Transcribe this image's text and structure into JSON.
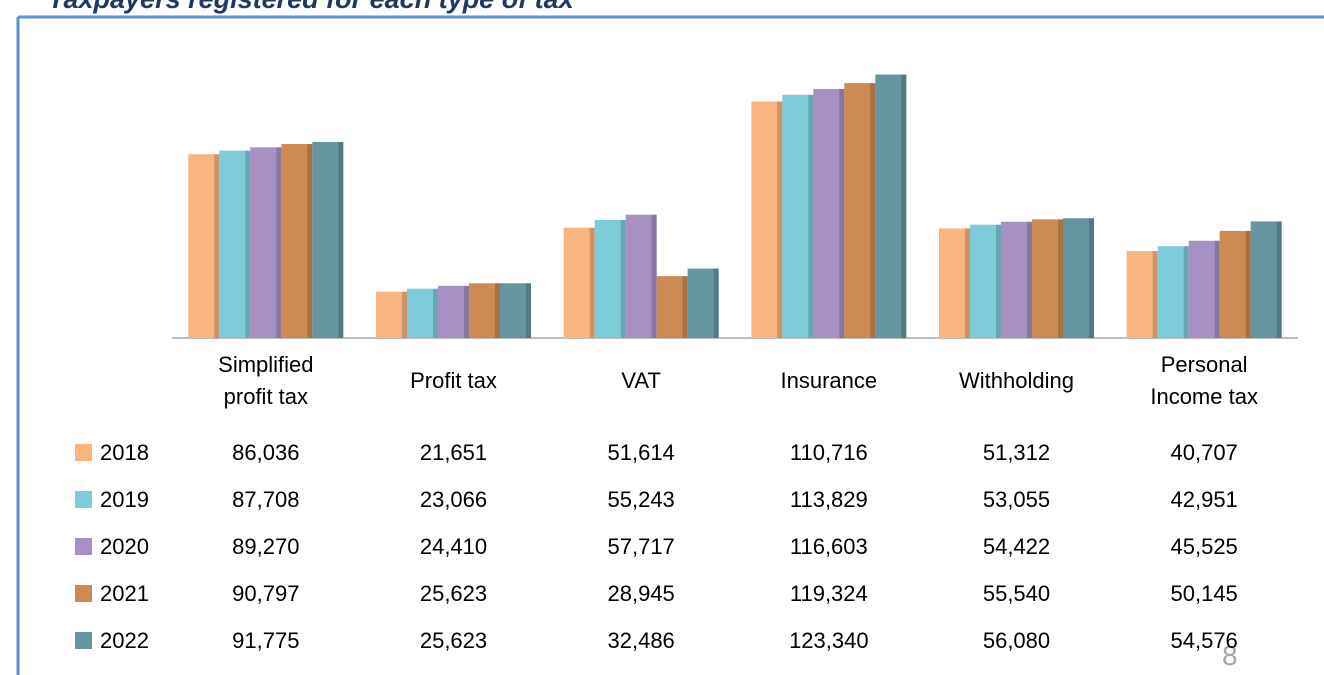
{
  "chart_data": {
    "type": "bar",
    "title": "Taxpayers registered for each type of tax",
    "annotation": "8",
    "categories": [
      "Simplified profit tax",
      "Profit tax",
      "VAT",
      "Insurance",
      "Withholding",
      "Personal Income tax"
    ],
    "ylim": [
      0,
      125000
    ],
    "legend": "table",
    "series": [
      {
        "name": "2018",
        "color": "#f9b47f",
        "values": [
          86036,
          21651,
          51614,
          110716,
          51312,
          40707
        ],
        "value_labels": [
          "86,036",
          "21,651",
          "51,614",
          "110,716",
          "51,312",
          "40,707"
        ]
      },
      {
        "name": "2019",
        "color": "#7ecbd9",
        "values": [
          87708,
          23066,
          55243,
          113829,
          53055,
          42951
        ],
        "value_labels": [
          "87,708",
          "23,066",
          "55,243",
          "113,829",
          "53,055",
          "42,951"
        ]
      },
      {
        "name": "2020",
        "color": "#a690c4",
        "values": [
          89270,
          24410,
          57717,
          116603,
          54422,
          45525
        ],
        "value_labels": [
          "89,270",
          "24,410",
          "57,717",
          "116,603",
          "54,422",
          "45,525"
        ]
      },
      {
        "name": "2021",
        "color": "#cd8a52",
        "values": [
          90797,
          25623,
          28945,
          119324,
          55540,
          50145
        ],
        "value_labels": [
          "90,797",
          "25,623",
          "28,945",
          "119,324",
          "55,540",
          "50,145"
        ]
      },
      {
        "name": "2022",
        "color": "#65959f",
        "values": [
          91775,
          25623,
          32486,
          123340,
          56080,
          54576
        ],
        "value_labels": [
          "91,775",
          "25,623",
          "32,486",
          "123,340",
          "56,080",
          "54,576"
        ]
      }
    ]
  }
}
